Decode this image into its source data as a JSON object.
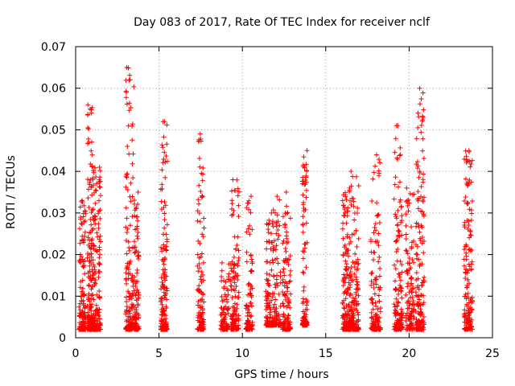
{
  "chart_data": {
    "type": "scatter",
    "title": "Day 083 of 2017, Rate Of TEC Index for receiver nclf",
    "xlabel": "GPS time / hours",
    "ylabel": "ROTI / TECUs",
    "xlim": [
      0,
      25
    ],
    "ylim": [
      0,
      0.07
    ],
    "x_ticks": [
      0,
      5,
      10,
      15,
      20,
      25
    ],
    "x_tick_labels": [
      "0",
      "5",
      "10",
      "15",
      "20",
      "25"
    ],
    "y_ticks": [
      0,
      0.01,
      0.02,
      0.03,
      0.04,
      0.05,
      0.06,
      0.07
    ],
    "y_tick_labels": [
      "0",
      "0.01",
      "0.02",
      "0.03",
      "0.04",
      "0.05",
      "0.06",
      "0.07"
    ],
    "grid": true,
    "marker": "+",
    "color": "#ff0000",
    "clusters": [
      {
        "x_start": 0.2,
        "x_end": 0.6,
        "y_min": 0.002,
        "y_max": 0.033,
        "n": 150
      },
      {
        "x_start": 0.7,
        "x_end": 1.0,
        "y_min": 0.002,
        "y_max": 0.056,
        "n": 150
      },
      {
        "x_start": 1.0,
        "x_end": 1.5,
        "y_min": 0.002,
        "y_max": 0.041,
        "n": 180
      },
      {
        "x_start": 3.0,
        "x_end": 3.5,
        "y_min": 0.002,
        "y_max": 0.065,
        "n": 160
      },
      {
        "x_start": 3.5,
        "x_end": 3.8,
        "y_min": 0.002,
        "y_max": 0.035,
        "n": 100
      },
      {
        "x_start": 5.1,
        "x_end": 5.5,
        "y_min": 0.002,
        "y_max": 0.052,
        "n": 160
      },
      {
        "x_start": 7.3,
        "x_end": 7.7,
        "y_min": 0.002,
        "y_max": 0.049,
        "n": 120
      },
      {
        "x_start": 8.7,
        "x_end": 9.2,
        "y_min": 0.002,
        "y_max": 0.018,
        "n": 90
      },
      {
        "x_start": 9.3,
        "x_end": 9.8,
        "y_min": 0.002,
        "y_max": 0.038,
        "n": 130
      },
      {
        "x_start": 10.2,
        "x_end": 10.6,
        "y_min": 0.002,
        "y_max": 0.034,
        "n": 100
      },
      {
        "x_start": 11.4,
        "x_end": 11.8,
        "y_min": 0.003,
        "y_max": 0.03,
        "n": 100
      },
      {
        "x_start": 11.8,
        "x_end": 12.3,
        "y_min": 0.003,
        "y_max": 0.034,
        "n": 110
      },
      {
        "x_start": 12.4,
        "x_end": 12.9,
        "y_min": 0.002,
        "y_max": 0.035,
        "n": 120
      },
      {
        "x_start": 13.6,
        "x_end": 13.9,
        "y_min": 0.003,
        "y_max": 0.045,
        "n": 100
      },
      {
        "x_start": 16.0,
        "x_end": 16.5,
        "y_min": 0.002,
        "y_max": 0.036,
        "n": 170
      },
      {
        "x_start": 16.5,
        "x_end": 17.0,
        "y_min": 0.002,
        "y_max": 0.04,
        "n": 150
      },
      {
        "x_start": 17.7,
        "x_end": 18.3,
        "y_min": 0.002,
        "y_max": 0.044,
        "n": 140
      },
      {
        "x_start": 19.1,
        "x_end": 19.6,
        "y_min": 0.002,
        "y_max": 0.051,
        "n": 150
      },
      {
        "x_start": 19.8,
        "x_end": 20.3,
        "y_min": 0.002,
        "y_max": 0.036,
        "n": 110
      },
      {
        "x_start": 20.4,
        "x_end": 20.9,
        "y_min": 0.002,
        "y_max": 0.06,
        "n": 170
      },
      {
        "x_start": 23.3,
        "x_end": 23.8,
        "y_min": 0.002,
        "y_max": 0.045,
        "n": 160
      }
    ]
  }
}
